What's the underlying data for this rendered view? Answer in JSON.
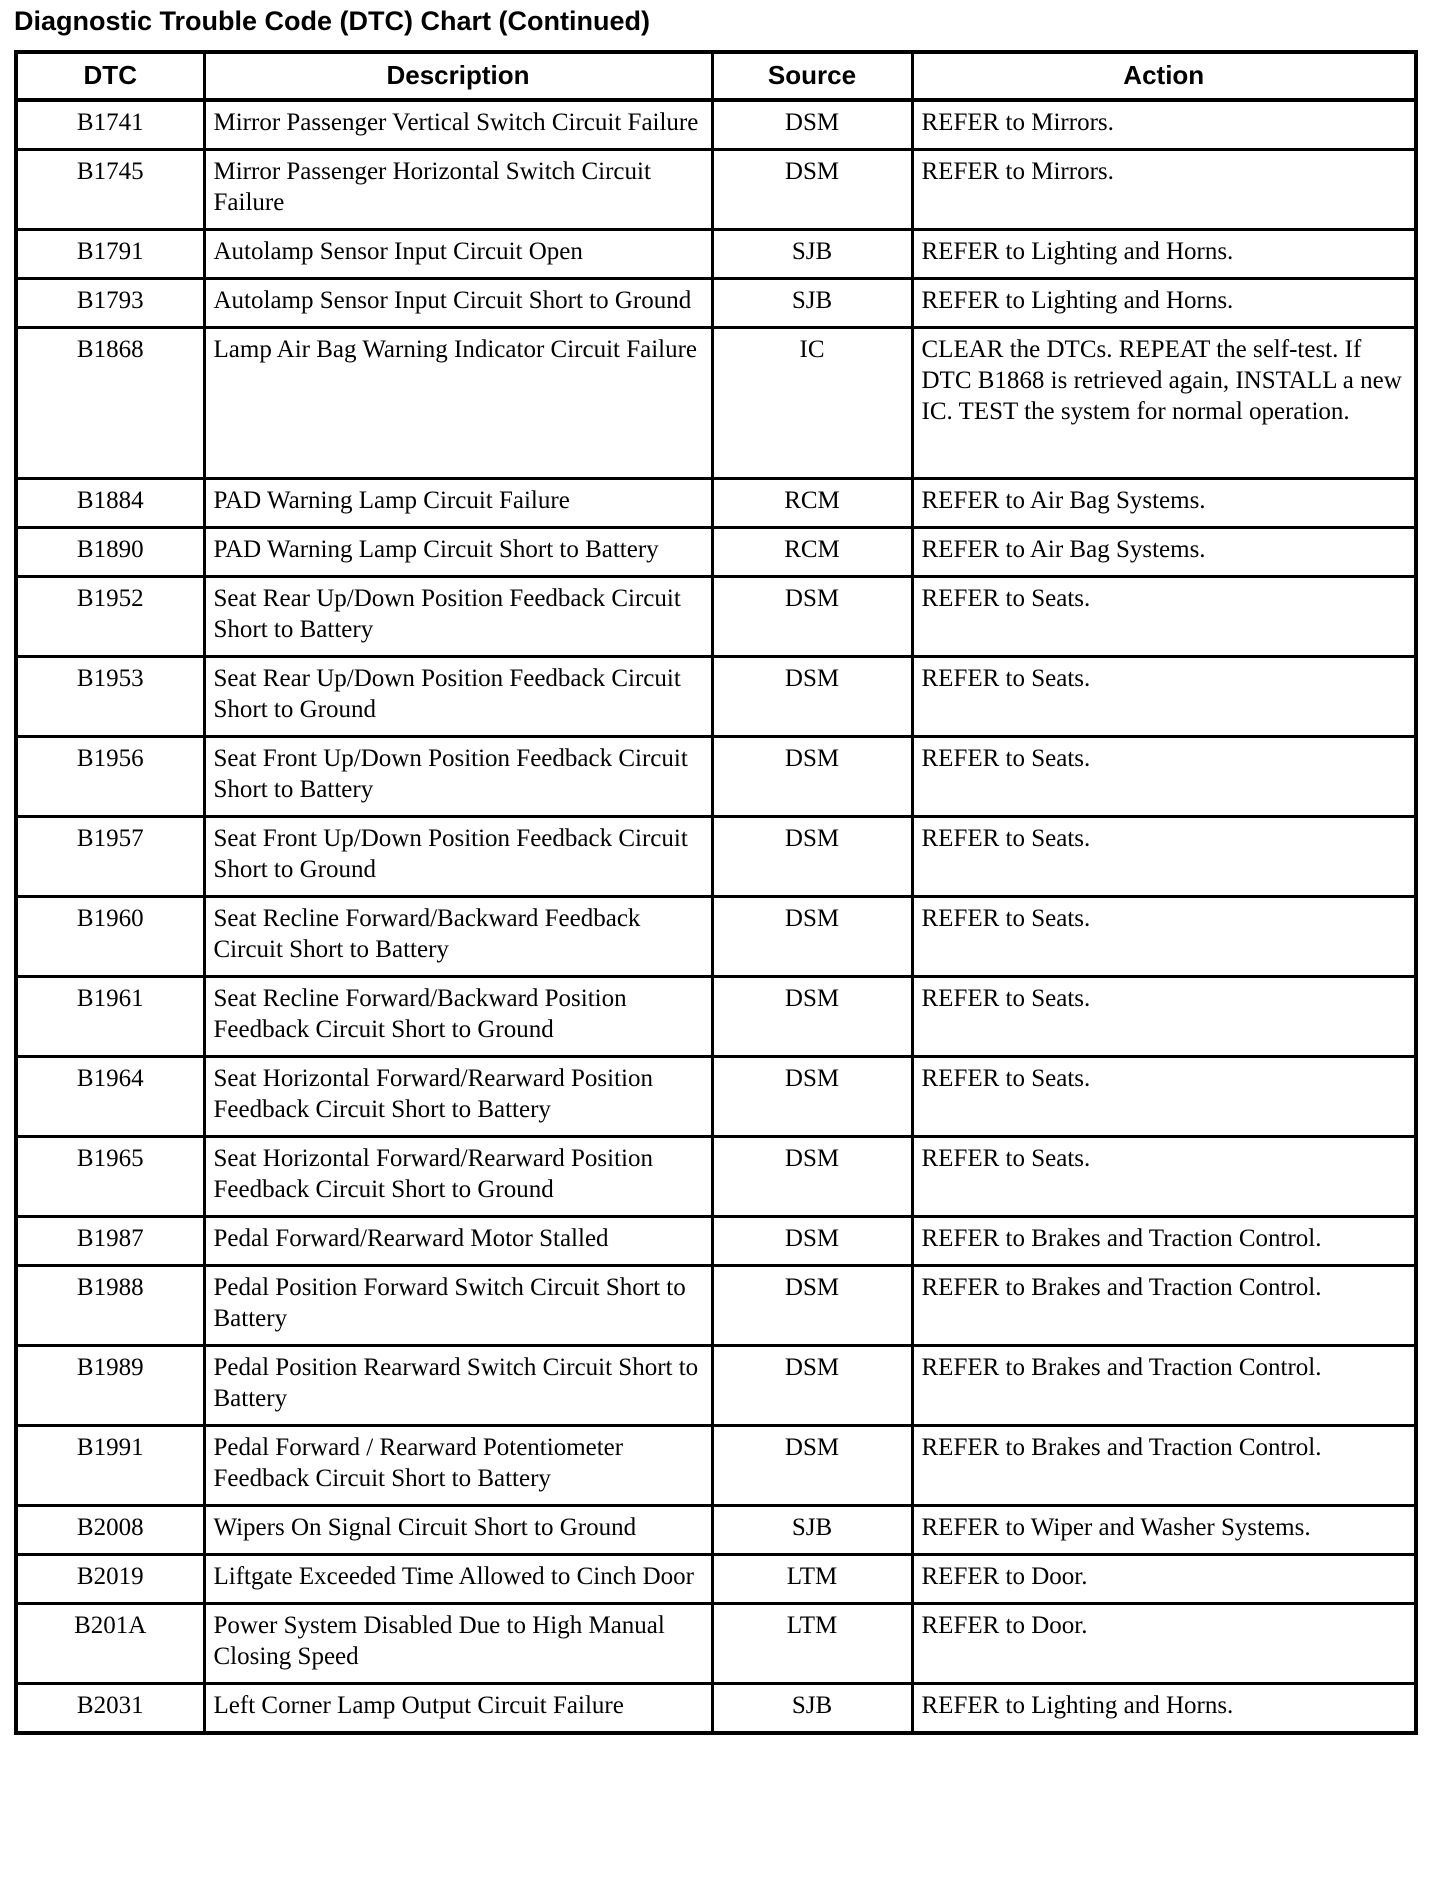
{
  "page": {
    "title": "Diagnostic Trouble Code (DTC) Chart (Continued)"
  },
  "colors": {
    "ink": "#000000",
    "paper": "#ffffff"
  },
  "table": {
    "columns": [
      "DTC",
      "Description",
      "Source",
      "Action"
    ],
    "rows": [
      {
        "dtc": "B1741",
        "description": "Mirror Passenger Vertical Switch Circuit Failure",
        "source": "DSM",
        "action": "REFER to Mirrors."
      },
      {
        "dtc": "B1745",
        "description": "Mirror Passenger Horizontal Switch Circuit Failure",
        "source": "DSM",
        "action": "REFER to Mirrors."
      },
      {
        "dtc": "B1791",
        "description": "Autolamp Sensor Input Circuit Open",
        "source": "SJB",
        "action": "REFER to Lighting and Horns."
      },
      {
        "dtc": "B1793",
        "description": "Autolamp Sensor Input Circuit Short to Ground",
        "source": "SJB",
        "action": "REFER to Lighting and Horns."
      },
      {
        "dtc": "B1868",
        "description": "Lamp Air Bag Warning Indicator Circuit Failure",
        "source": "IC",
        "action": "CLEAR the DTCs. REPEAT the self-test. If DTC B1868 is retrieved again, INSTALL a new IC. TEST the system for normal operation."
      },
      {
        "dtc": "B1884",
        "description": "PAD Warning Lamp Circuit Failure",
        "source": "RCM",
        "action": "REFER to Air Bag Systems."
      },
      {
        "dtc": "B1890",
        "description": "PAD Warning Lamp Circuit Short to Battery",
        "source": "RCM",
        "action": "REFER to Air Bag Systems."
      },
      {
        "dtc": "B1952",
        "description": "Seat Rear Up/Down Position Feedback Circuit Short to Battery",
        "source": "DSM",
        "action": "REFER to Seats."
      },
      {
        "dtc": "B1953",
        "description": "Seat Rear Up/Down Position Feedback Circuit Short to Ground",
        "source": "DSM",
        "action": "REFER to Seats."
      },
      {
        "dtc": "B1956",
        "description": "Seat Front Up/Down Position Feedback Circuit Short to Battery",
        "source": "DSM",
        "action": "REFER to Seats."
      },
      {
        "dtc": "B1957",
        "description": "Seat Front Up/Down Position Feedback Circuit Short to Ground",
        "source": "DSM",
        "action": "REFER to Seats."
      },
      {
        "dtc": "B1960",
        "description": "Seat Recline Forward/Backward Feedback Circuit Short to Battery",
        "source": "DSM",
        "action": "REFER to Seats."
      },
      {
        "dtc": "B1961",
        "description": "Seat Recline Forward/Backward Position Feedback Circuit Short to Ground",
        "source": "DSM",
        "action": "REFER to Seats."
      },
      {
        "dtc": "B1964",
        "description": "Seat Horizontal Forward/Rearward Position Feedback Circuit Short to Battery",
        "source": "DSM",
        "action": "REFER to Seats."
      },
      {
        "dtc": "B1965",
        "description": "Seat Horizontal Forward/Rearward Position Feedback Circuit Short to Ground",
        "source": "DSM",
        "action": "REFER to Seats."
      },
      {
        "dtc": "B1987",
        "description": "Pedal Forward/Rearward Motor Stalled",
        "source": "DSM",
        "action": "REFER to Brakes and Traction Control."
      },
      {
        "dtc": "B1988",
        "description": "Pedal Position Forward Switch Circuit Short to Battery",
        "source": "DSM",
        "action": "REFER to Brakes and Traction Control."
      },
      {
        "dtc": "B1989",
        "description": "Pedal Position Rearward Switch Circuit Short to Battery",
        "source": "DSM",
        "action": "REFER to Brakes and Traction Control."
      },
      {
        "dtc": "B1991",
        "description": "Pedal Forward / Rearward Potentiometer Feedback Circuit Short to Battery",
        "source": "DSM",
        "action": "REFER to Brakes and Traction Control."
      },
      {
        "dtc": "B2008",
        "description": "Wipers On Signal Circuit Short to Ground",
        "source": "SJB",
        "action": "REFER to Wiper and Washer Systems."
      },
      {
        "dtc": "B2019",
        "description": "Liftgate Exceeded Time Allowed to Cinch Door",
        "source": "LTM",
        "action": "REFER to Door."
      },
      {
        "dtc": "B201A",
        "description": "Power System Disabled Due to High Manual Closing Speed",
        "source": "LTM",
        "action": "REFER to Door."
      },
      {
        "dtc": "B2031",
        "description": "Left Corner Lamp Output Circuit Failure",
        "source": "SJB",
        "action": "REFER to Lighting and Horns."
      }
    ]
  }
}
